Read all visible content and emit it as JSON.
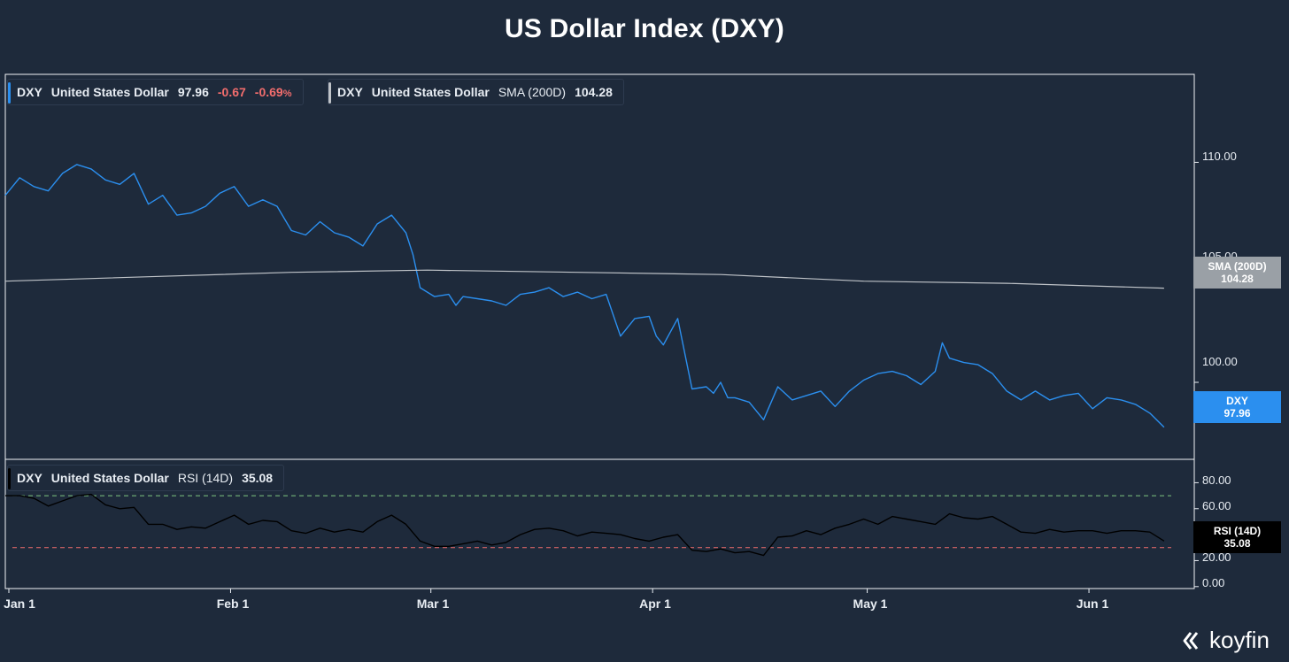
{
  "title": "US Dollar Index (DXY)",
  "brand": "koyfin",
  "legends": {
    "dxy": {
      "ticker": "DXY",
      "name": "United States Dollar",
      "value": "97.96",
      "change": "-0.67",
      "change_pct": "-0.69",
      "pct_sign": "%",
      "color": "#2b8fef"
    },
    "sma": {
      "ticker": "DXY",
      "name": "United States Dollar",
      "indicator": "SMA (200D)",
      "value": "104.28",
      "color": "#bfc3c8"
    },
    "rsi": {
      "ticker": "DXY",
      "name": "United States Dollar",
      "indicator": "RSI (14D)",
      "value": "35.08",
      "color": "#000000"
    }
  },
  "tags": {
    "sma": {
      "label": "SMA (200D)",
      "value": "104.28",
      "color": "#9aa0a6"
    },
    "dxy": {
      "label": "DXY",
      "value": "97.96",
      "color": "#2b8fef"
    },
    "rsi": {
      "label": "RSI (14D)",
      "value": "35.08",
      "color": "#000000"
    }
  },
  "x_labels": [
    "Jan 1",
    "Feb 1",
    "Mar 1",
    "Apr 1",
    "May 1",
    "Jun 1"
  ],
  "price_axis_labels": [
    "110.00",
    "105.00",
    "100.00"
  ],
  "rsi_axis_labels": [
    "80.00",
    "60.00",
    "20.00",
    "0.00"
  ],
  "chart_data": {
    "type": "line",
    "x_domain": [
      0,
      163
    ],
    "x_ticks": {
      "Jan 1": 0,
      "Feb 1": 31,
      "Mar 1": 59,
      "Apr 1": 90,
      "May 1": 120,
      "Jun 1": 151
    },
    "price_panel": {
      "ylim": [
        96.5,
        114
      ],
      "yticks": [
        110,
        105,
        100
      ],
      "series": [
        {
          "name": "DXY",
          "color": "#2b8fef",
          "x": [
            0,
            2,
            4,
            6,
            8,
            10,
            12,
            14,
            16,
            18,
            20,
            22,
            24,
            26,
            28,
            30,
            32,
            34,
            36,
            38,
            40,
            42,
            44,
            46,
            48,
            50,
            52,
            54,
            56,
            57,
            58,
            60,
            62,
            63,
            64,
            66,
            68,
            70,
            72,
            74,
            76,
            78,
            80,
            82,
            84,
            86,
            88,
            90,
            91,
            92,
            93,
            94,
            96,
            98,
            99,
            100,
            101,
            102,
            104,
            106,
            108,
            110,
            112,
            114,
            116,
            118,
            120,
            122,
            124,
            126,
            128,
            130,
            131,
            132,
            134,
            136,
            138,
            140,
            142,
            144,
            146,
            148,
            150,
            152,
            154,
            156,
            158,
            160,
            162
          ],
          "y": [
            108.5,
            109.3,
            108.9,
            108.7,
            109.5,
            109.9,
            109.7,
            109.2,
            109.0,
            109.5,
            108.1,
            108.5,
            107.6,
            107.7,
            108.0,
            108.6,
            108.9,
            108.0,
            108.3,
            108.0,
            106.9,
            106.7,
            107.3,
            106.8,
            106.6,
            106.2,
            107.2,
            107.6,
            106.8,
            105.8,
            104.3,
            103.9,
            104.0,
            103.5,
            103.9,
            103.8,
            103.7,
            103.5,
            104.0,
            104.1,
            104.3,
            103.9,
            104.1,
            103.8,
            104.0,
            102.1,
            102.9,
            103.0,
            102.1,
            101.7,
            102.3,
            102.9,
            99.7,
            99.8,
            99.5,
            100.0,
            99.3,
            99.3,
            99.1,
            98.3,
            99.8,
            99.2,
            99.4,
            99.6,
            98.9,
            99.6,
            100.1,
            100.4,
            100.5,
            100.3,
            99.9,
            100.5,
            101.8,
            101.1,
            100.9,
            100.8,
            100.4,
            99.6,
            99.2,
            99.6,
            99.2,
            99.4,
            99.5,
            98.8,
            99.3,
            99.2,
            99.0,
            98.6,
            97.96
          ]
        },
        {
          "name": "SMA (200D)",
          "color": "#bfc3c8",
          "x": [
            0,
            20,
            40,
            59,
            80,
            100,
            120,
            140,
            162
          ],
          "y": [
            104.6,
            104.8,
            105.0,
            105.1,
            105.0,
            104.9,
            104.6,
            104.5,
            104.28
          ]
        }
      ]
    },
    "rsi_panel": {
      "ylim": [
        -1.5,
        98
      ],
      "yticks": [
        80,
        60,
        20,
        0
      ],
      "bands": [
        {
          "value": 70,
          "color": "#7fc77f"
        },
        {
          "value": 30,
          "color": "#f26d6d"
        }
      ],
      "series": [
        {
          "name": "RSI (14D)",
          "color": "#000000",
          "x": [
            0,
            2,
            4,
            6,
            8,
            10,
            12,
            14,
            16,
            18,
            20,
            22,
            24,
            26,
            28,
            30,
            32,
            34,
            36,
            38,
            40,
            42,
            44,
            46,
            48,
            50,
            52,
            54,
            56,
            58,
            60,
            62,
            64,
            66,
            68,
            70,
            72,
            74,
            76,
            78,
            80,
            82,
            84,
            86,
            88,
            90,
            92,
            94,
            96,
            98,
            100,
            102,
            104,
            106,
            108,
            110,
            112,
            114,
            116,
            118,
            120,
            122,
            124,
            126,
            128,
            130,
            132,
            134,
            136,
            138,
            140,
            142,
            144,
            146,
            148,
            150,
            152,
            154,
            156,
            158,
            160,
            162
          ],
          "y": [
            70,
            70,
            68,
            62,
            66,
            70,
            71,
            63,
            60,
            61,
            48,
            48,
            44,
            46,
            45,
            50,
            55,
            48,
            51,
            50,
            43,
            41,
            45,
            42,
            44,
            42,
            50,
            55,
            48,
            35,
            31,
            31,
            33,
            35,
            32,
            34,
            40,
            44,
            45,
            43,
            39,
            42,
            41,
            40,
            37,
            35,
            38,
            40,
            28,
            27,
            29,
            26,
            27,
            24,
            38,
            39,
            43,
            40,
            45,
            48,
            52,
            48,
            54,
            52,
            50,
            48,
            56,
            53,
            52,
            54,
            48,
            42,
            41,
            44,
            42,
            43,
            43,
            41,
            43,
            43,
            42,
            35.08
          ]
        }
      ]
    }
  }
}
